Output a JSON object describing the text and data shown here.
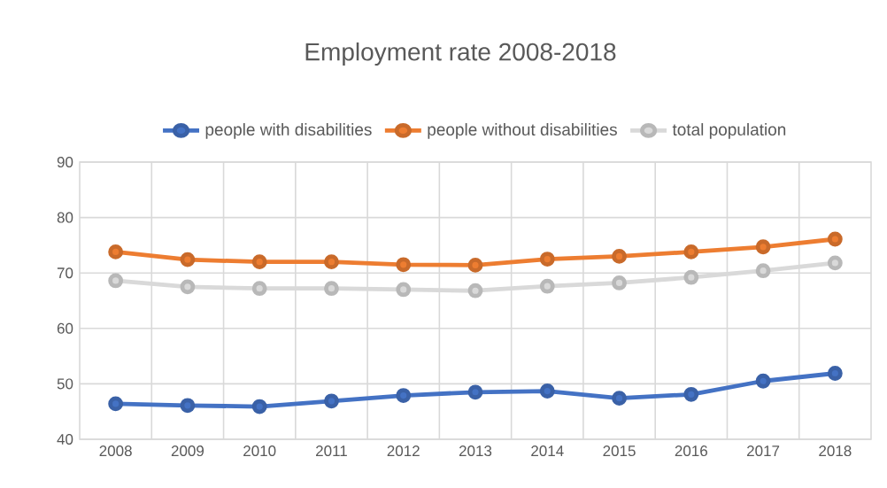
{
  "chart_data": {
    "type": "line",
    "title": "Employment rate 2008-2018",
    "categories": [
      "2008",
      "2009",
      "2010",
      "2011",
      "2012",
      "2013",
      "2014",
      "2015",
      "2016",
      "2017",
      "2018"
    ],
    "series": [
      {
        "name": "people with disabilities",
        "color": "#4472c4",
        "values": [
          46.4,
          46.1,
          45.9,
          46.9,
          47.9,
          48.5,
          48.7,
          47.4,
          48.1,
          50.5,
          51.9
        ]
      },
      {
        "name": "people without disabilities",
        "color": "#ed7d31",
        "values": [
          73.8,
          72.4,
          72.0,
          72.0,
          71.5,
          71.4,
          72.5,
          73.0,
          73.8,
          74.7,
          76.1
        ]
      },
      {
        "name": "total population",
        "color": "#d9d9d9",
        "values": [
          68.6,
          67.5,
          67.2,
          67.2,
          67.0,
          66.8,
          67.6,
          68.2,
          69.2,
          70.4,
          71.8
        ]
      }
    ],
    "ylim": [
      40,
      90
    ],
    "yticks": [
      40,
      50,
      60,
      70,
      80,
      90
    ],
    "grid": true,
    "legend": "top",
    "marker": "circle",
    "line_style": "solid"
  }
}
